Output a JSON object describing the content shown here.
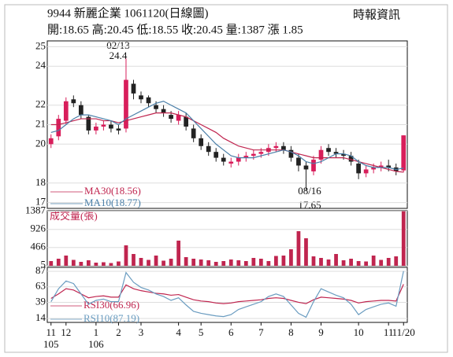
{
  "chart_data": {
    "type": "candlestick",
    "title": "9944  新麗企業 1061120(日線圖)",
    "source": "時報資訊",
    "quote": "開:18.65 高:20.45 低:18.55 收:20.45 量:1387 漲 1.85",
    "categories": [
      "11",
      null,
      "12",
      null,
      null,
      null,
      "1",
      null,
      null,
      "2",
      null,
      null,
      "3",
      null,
      null,
      null,
      null,
      "4",
      null,
      null,
      "5",
      null,
      null,
      null,
      "6",
      null,
      null,
      null,
      "7",
      null,
      null,
      null,
      "8",
      null,
      null,
      null,
      "9",
      null,
      null,
      null,
      null,
      "10",
      null,
      null,
      null,
      "11",
      null,
      "11/20"
    ],
    "year_labels": [
      "105",
      null,
      null,
      null,
      null,
      null,
      "106",
      null,
      null,
      null,
      null,
      null,
      null,
      null,
      null,
      null,
      null,
      null,
      null,
      null,
      null,
      null,
      null,
      null,
      null,
      null,
      null,
      null,
      null,
      null,
      null,
      null,
      null,
      null,
      null,
      null,
      null,
      null,
      null,
      null,
      null,
      null,
      null,
      null,
      null,
      null,
      null,
      null
    ],
    "open": [
      20.0,
      20.4,
      21.2,
      22.3,
      22.0,
      21.4,
      20.7,
      20.9,
      21.0,
      20.8,
      20.8,
      23.1,
      22.5,
      22.4,
      22.0,
      21.8,
      21.5,
      21.2,
      21.4,
      20.8,
      20.3,
      19.9,
      19.6,
      19.3,
      19.0,
      19.1,
      19.3,
      19.4,
      19.5,
      19.6,
      19.8,
      19.9,
      19.7,
      19.3,
      18.9,
      18.6,
      19.2,
      19.8,
      19.6,
      19.5,
      19.4,
      19.0,
      18.5,
      18.7,
      18.8,
      18.9,
      18.8,
      18.65
    ],
    "high": [
      20.5,
      21.5,
      22.4,
      22.5,
      22.2,
      21.5,
      21.1,
      21.2,
      21.2,
      21.0,
      24.4,
      23.3,
      22.7,
      22.5,
      22.2,
      22.0,
      21.7,
      21.7,
      21.6,
      21.0,
      20.5,
      20.1,
      19.8,
      19.5,
      19.3,
      19.5,
      19.6,
      19.7,
      19.8,
      20.0,
      20.1,
      20.1,
      19.9,
      19.5,
      19.1,
      19.4,
      19.9,
      20.0,
      19.8,
      19.7,
      19.6,
      19.2,
      18.9,
      19.0,
      19.1,
      19.2,
      19.0,
      20.45
    ],
    "low": [
      19.8,
      20.2,
      21.0,
      21.9,
      21.3,
      20.5,
      20.5,
      20.7,
      20.6,
      20.5,
      20.6,
      22.3,
      22.1,
      21.9,
      21.6,
      21.4,
      21.1,
      21.0,
      20.7,
      20.1,
      19.7,
      19.4,
      19.1,
      18.9,
      18.8,
      18.9,
      19.1,
      19.2,
      19.3,
      19.4,
      19.6,
      19.5,
      19.1,
      18.6,
      17.65,
      18.4,
      19.0,
      19.4,
      19.3,
      19.2,
      18.9,
      18.2,
      18.3,
      18.5,
      18.6,
      18.6,
      18.4,
      18.55
    ],
    "close": [
      20.3,
      21.3,
      22.2,
      22.1,
      21.5,
      20.7,
      20.9,
      21.0,
      20.8,
      20.7,
      23.3,
      22.6,
      22.3,
      22.1,
      21.8,
      21.6,
      21.3,
      21.5,
      20.9,
      20.3,
      19.9,
      19.6,
      19.3,
      19.1,
      19.1,
      19.3,
      19.4,
      19.5,
      19.6,
      19.8,
      19.9,
      19.7,
      19.3,
      18.9,
      18.7,
      19.2,
      19.7,
      19.6,
      19.5,
      19.4,
      19.1,
      18.5,
      18.7,
      18.8,
      18.9,
      18.8,
      18.6,
      20.45
    ],
    "up_color": "#d81e5b",
    "down_color": "#222222",
    "ylim": [
      16.7,
      25.3
    ],
    "yticks": [
      25,
      24,
      22,
      21,
      20,
      18,
      17
    ],
    "series": [
      {
        "name": "MA30(18.56)",
        "color": "#c0254f",
        "values": [
          21.0,
          21.0,
          21.1,
          21.2,
          21.3,
          21.3,
          21.3,
          21.2,
          21.2,
          21.1,
          21.2,
          21.3,
          21.4,
          21.5,
          21.6,
          21.6,
          21.6,
          21.5,
          21.4,
          21.2,
          21.0,
          20.8,
          20.6,
          20.3,
          20.1,
          19.9,
          19.8,
          19.7,
          19.7,
          19.7,
          19.7,
          19.7,
          19.6,
          19.5,
          19.4,
          19.3,
          19.3,
          19.3,
          19.3,
          19.3,
          19.2,
          19.1,
          19.0,
          18.9,
          18.8,
          18.7,
          18.6,
          18.56
        ]
      },
      {
        "name": "MA10(18.77)",
        "color": "#4a7fa8",
        "values": [
          20.6,
          20.7,
          21.0,
          21.3,
          21.5,
          21.5,
          21.4,
          21.3,
          21.2,
          21.0,
          21.3,
          21.5,
          21.7,
          21.9,
          22.1,
          22.2,
          22.0,
          21.8,
          21.6,
          21.2,
          20.8,
          20.4,
          20.0,
          19.7,
          19.4,
          19.3,
          19.3,
          19.3,
          19.4,
          19.5,
          19.6,
          19.7,
          19.6,
          19.4,
          19.1,
          19.0,
          19.1,
          19.3,
          19.5,
          19.5,
          19.4,
          19.1,
          18.9,
          18.8,
          18.8,
          18.8,
          18.7,
          18.77
        ]
      }
    ],
    "annotations": [
      {
        "date": "02/13",
        "value": 24.4
      },
      {
        "date": "08/16",
        "value": 17.65
      }
    ],
    "volume": {
      "title": "成交量(張)",
      "color": "#c0254f",
      "ylim": [
        0,
        1400
      ],
      "yticks": [
        1387,
        926,
        466,
        5
      ],
      "values": [
        120,
        180,
        260,
        150,
        100,
        140,
        80,
        90,
        70,
        110,
        520,
        300,
        200,
        150,
        260,
        130,
        180,
        640,
        220,
        180,
        160,
        140,
        100,
        120,
        160,
        140,
        120,
        200,
        180,
        120,
        250,
        260,
        420,
        880,
        700,
        240,
        200,
        160,
        300,
        140,
        180,
        120,
        110,
        260,
        150,
        200,
        240,
        1387
      ]
    },
    "rsi": {
      "ylim": [
        8,
        93
      ],
      "yticks": [
        87,
        63,
        39,
        14
      ],
      "series": [
        {
          "name": "RSI30(66.96)",
          "color": "#c0254f",
          "values": [
            45,
            52,
            60,
            58,
            52,
            46,
            48,
            49,
            47,
            47,
            66,
            60,
            57,
            55,
            53,
            52,
            50,
            51,
            47,
            43,
            41,
            40,
            38,
            37,
            38,
            40,
            41,
            42,
            43,
            45,
            46,
            45,
            42,
            39,
            37,
            43,
            47,
            46,
            45,
            44,
            42,
            38,
            40,
            41,
            42,
            42,
            41,
            66.96
          ]
        },
        {
          "name": "RSI10(87.19)",
          "color": "#6a9cc0",
          "values": [
            40,
            60,
            72,
            68,
            52,
            36,
            42,
            44,
            40,
            40,
            85,
            70,
            62,
            58,
            52,
            48,
            42,
            46,
            35,
            25,
            22,
            20,
            18,
            17,
            20,
            28,
            32,
            36,
            40,
            48,
            52,
            48,
            35,
            22,
            16,
            40,
            60,
            55,
            50,
            46,
            36,
            20,
            28,
            32,
            36,
            38,
            33,
            87.19
          ]
        }
      ]
    }
  }
}
